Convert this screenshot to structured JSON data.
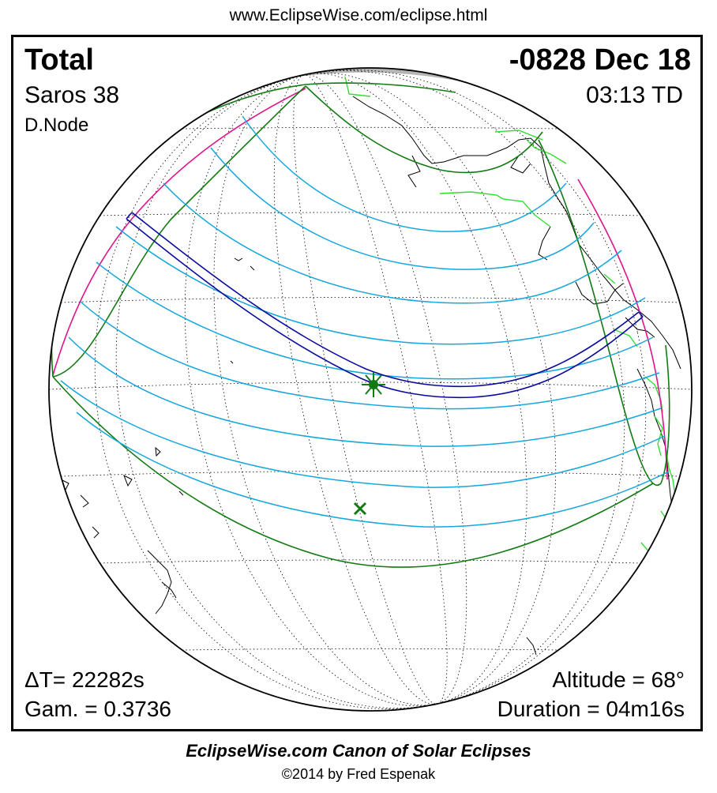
{
  "header": {
    "url": "www.EclipseWise.com/eclipse.html"
  },
  "eclipse": {
    "type": "Total",
    "date": "-0828 Dec 18",
    "saros": "Saros  38",
    "time": "03:13 TD",
    "node": "D.Node",
    "delta_t": "ΔT=  22282s",
    "gamma": "Gam. = 0.3736",
    "altitude": "Altitude = 68°",
    "duration": "Duration = 04m16s"
  },
  "footer": {
    "credit": "EclipseWise.com Canon of Solar Eclipses",
    "copyright": "©2014 by Fred Espenak"
  },
  "colors": {
    "totality_path": "#0a0a9e",
    "penumbra_limits": "#127a12",
    "magnitude_lines": "#14a6dc",
    "terminator": "#e0148c",
    "borders": "#33dd33",
    "night_side": "#b5b5b5",
    "coastlines": "#000000"
  },
  "markers": [
    {
      "name": "greatest eclipse",
      "symbol": "star"
    },
    {
      "name": "sub-solar point",
      "symbol": "x"
    }
  ]
}
